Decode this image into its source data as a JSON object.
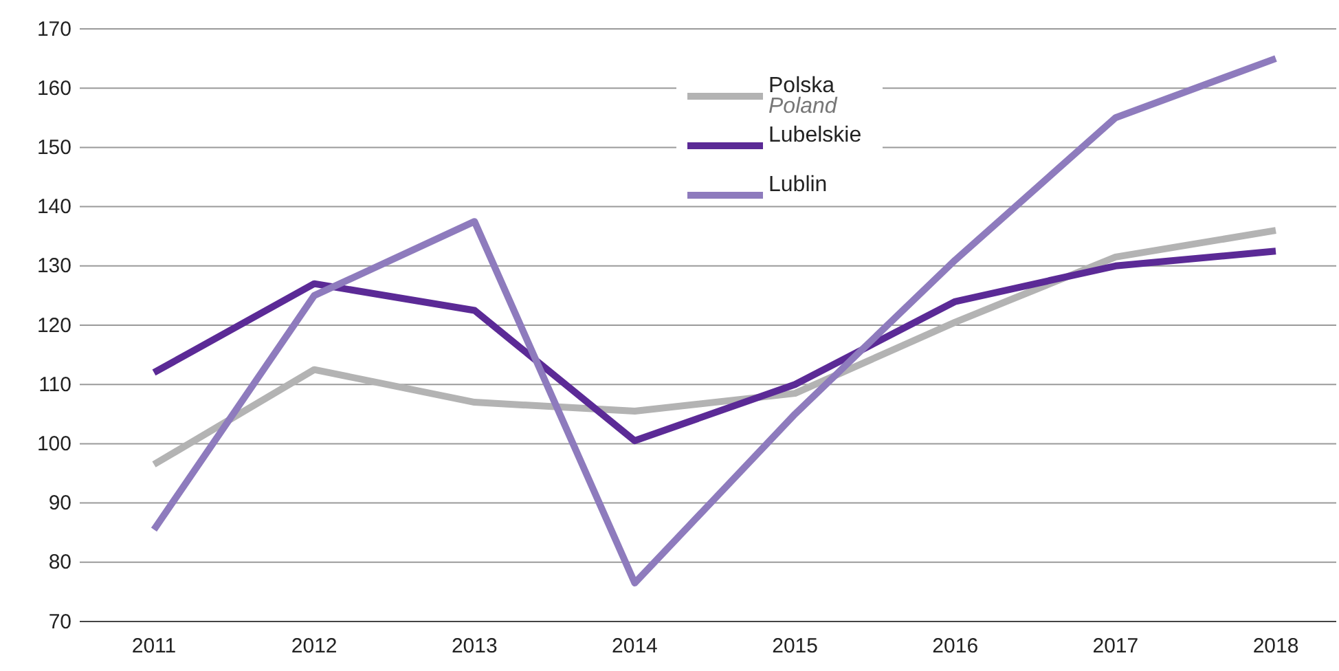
{
  "chart_data": {
    "type": "line",
    "categories": [
      "2011",
      "2012",
      "2013",
      "2014",
      "2015",
      "2016",
      "2017",
      "2018"
    ],
    "series": [
      {
        "name": "Polska\nPoland",
        "color": "#b3b3b3",
        "values": [
          96.5,
          112.5,
          107,
          105.5,
          108.5,
          120.5,
          131.5,
          136
        ]
      },
      {
        "name": "Lubelskie",
        "color": "#5b2a96",
        "values": [
          112,
          127,
          122.5,
          100.5,
          110,
          124,
          130,
          132.5
        ]
      },
      {
        "name": "Lublin",
        "color": "#8e7bbd",
        "values": [
          85.5,
          125,
          137.5,
          76.5,
          105,
          131,
          155,
          165
        ]
      }
    ],
    "ylim": [
      70,
      170
    ],
    "yticks": [
      70,
      80,
      90,
      100,
      110,
      120,
      130,
      140,
      150,
      160,
      170
    ],
    "grid": "y",
    "legend": "top center",
    "marker": "none",
    "line_style": "solid"
  }
}
